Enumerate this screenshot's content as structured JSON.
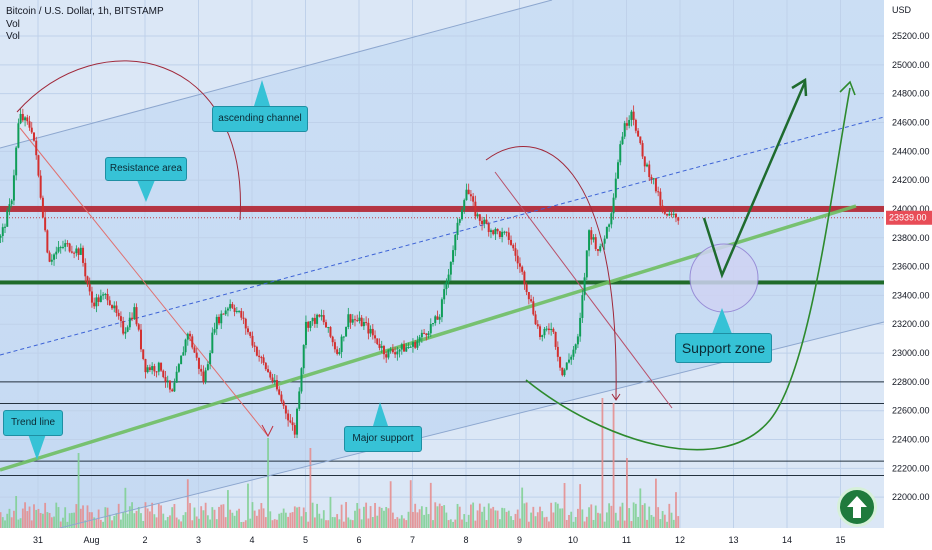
{
  "header": {
    "symbol_line": "Bitcoin / U.S. Dollar, 1h, BITSTAMP",
    "vol1": "Vol",
    "vol2": "Vol"
  },
  "chart_data": {
    "type": "candlestick",
    "currency": "USD",
    "price_label": "23939.00",
    "ylim": [
      21800,
      25450
    ],
    "yticks": [
      22000,
      22200,
      22400,
      22600,
      22800,
      23000,
      23200,
      23400,
      23600,
      23800,
      24000,
      24200,
      24400,
      24600,
      24800,
      25000,
      25200
    ],
    "x_tick_labels": [
      "31",
      "Aug",
      "2",
      "3",
      "4",
      "5",
      "6",
      "7",
      "8",
      "9",
      "10",
      "11",
      "12",
      "13",
      "14",
      "15"
    ],
    "x_tick_days": [
      0,
      1,
      2,
      3,
      4,
      5,
      6,
      7,
      8,
      9,
      10,
      11,
      12,
      13,
      14,
      15
    ],
    "x_range_days": [
      -0.7,
      16.2
    ],
    "price_keypoints": [
      [
        -0.7,
        23800
      ],
      [
        -0.5,
        24050
      ],
      [
        -0.35,
        24650
      ],
      [
        -0.1,
        24550
      ],
      [
        0.2,
        23650
      ],
      [
        0.5,
        23750
      ],
      [
        0.8,
        23700
      ],
      [
        1.0,
        23350
      ],
      [
        1.3,
        23400
      ],
      [
        1.6,
        23150
      ],
      [
        1.8,
        23300
      ],
      [
        2.0,
        22900
      ],
      [
        2.3,
        22900
      ],
      [
        2.5,
        22700
      ],
      [
        2.8,
        23150
      ],
      [
        3.1,
        22800
      ],
      [
        3.3,
        23200
      ],
      [
        3.6,
        23350
      ],
      [
        3.8,
        23250
      ],
      [
        4.1,
        23000
      ],
      [
        4.4,
        22800
      ],
      [
        4.8,
        22450
      ],
      [
        5.0,
        23200
      ],
      [
        5.3,
        23250
      ],
      [
        5.6,
        23000
      ],
      [
        5.8,
        23250
      ],
      [
        6.1,
        23200
      ],
      [
        6.5,
        23000
      ],
      [
        7.0,
        23050
      ],
      [
        7.5,
        23250
      ],
      [
        7.8,
        23800
      ],
      [
        8.0,
        24150
      ],
      [
        8.2,
        23950
      ],
      [
        8.5,
        23850
      ],
      [
        8.8,
        23800
      ],
      [
        9.1,
        23500
      ],
      [
        9.4,
        23100
      ],
      [
        9.6,
        23200
      ],
      [
        9.8,
        22850
      ],
      [
        10.1,
        23100
      ],
      [
        10.3,
        23850
      ],
      [
        10.5,
        23700
      ],
      [
        10.7,
        23950
      ],
      [
        10.9,
        24500
      ],
      [
        11.1,
        24700
      ],
      [
        11.3,
        24350
      ],
      [
        11.5,
        24200
      ],
      [
        11.7,
        23950
      ],
      [
        12.0,
        23939
      ]
    ],
    "levels": {
      "resistance": 24000,
      "support_band": 23490,
      "line_22800": 22800,
      "line_22650": 22650,
      "line_22250": 22250,
      "line_22150": 22150
    },
    "annotations": {
      "ascending_channel": "ascending channel",
      "resistance_area": "Resistance area",
      "trend_line": "Trend line",
      "major_support": "Major support",
      "support_zone": "Support zone"
    }
  }
}
